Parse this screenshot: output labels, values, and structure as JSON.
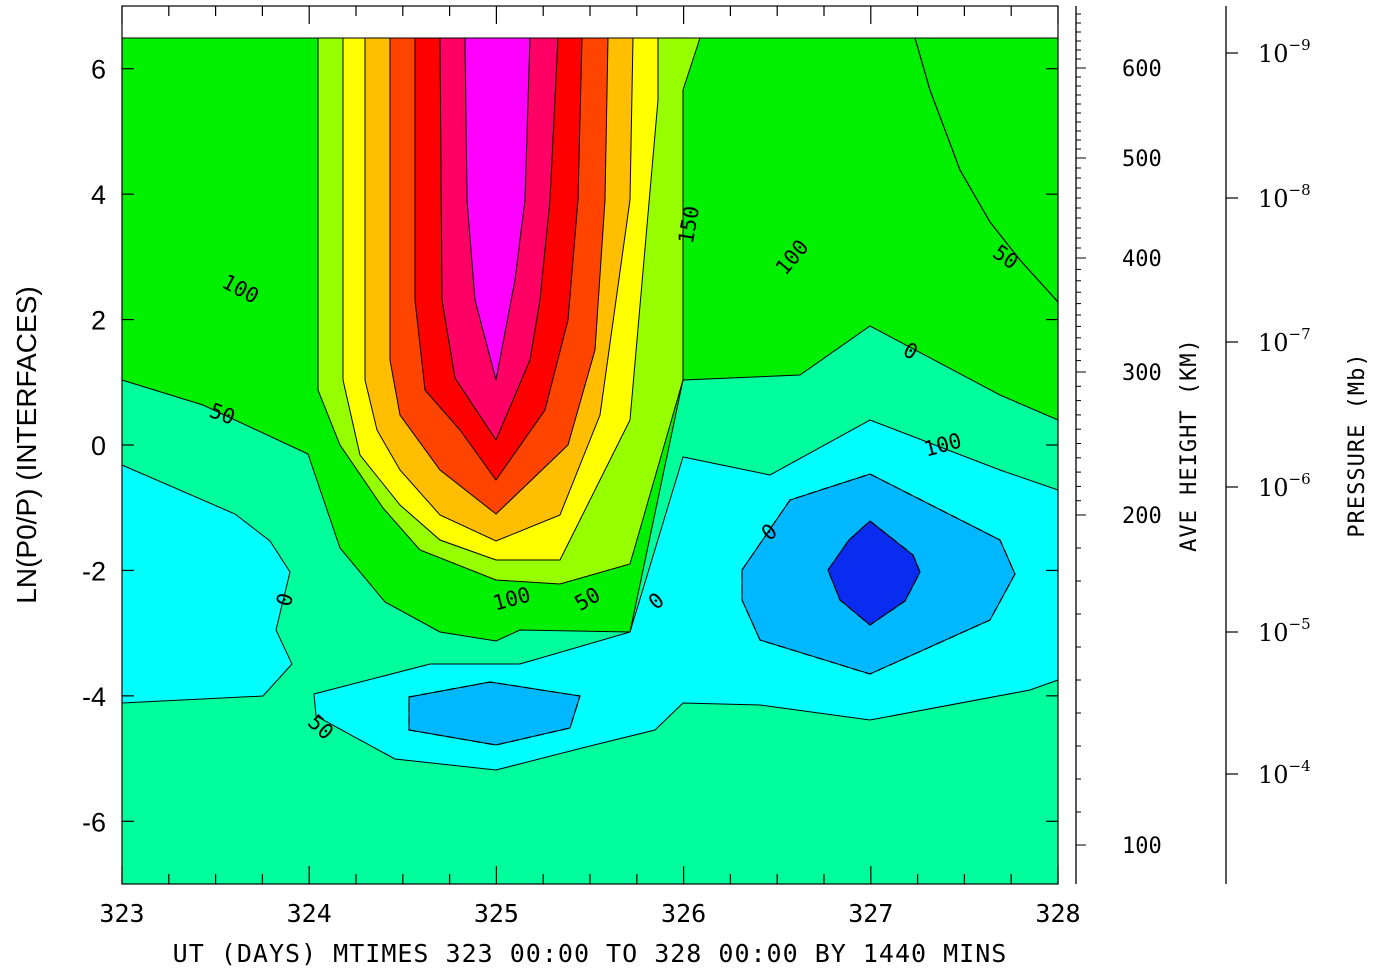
{
  "chart_data": {
    "type": "contour",
    "xlabel": "UT (DAYS) MTIMES 323 00:00 TO 328 00:00 BY 1440 MINS",
    "ylabel": "LN(P0/P) (INTERFACES)",
    "xlim": [
      323,
      328
    ],
    "ylim": [
      -7,
      7
    ],
    "x_ticks": [
      "323",
      "324",
      "325",
      "326",
      "327",
      "328"
    ],
    "y_ticks": [
      "-6",
      "-4",
      "-2",
      "0",
      "2",
      "4",
      "6"
    ],
    "right_axis_1": {
      "label": "AVE HEIGHT (KM)",
      "ticks": [
        "100",
        "200",
        "300",
        "400",
        "500",
        "600"
      ]
    },
    "right_axis_2": {
      "label": "PRESSURE (Mb)",
      "ticks": [
        {
          "base": "10",
          "exp": "−4"
        },
        {
          "base": "10",
          "exp": "−5"
        },
        {
          "base": "10",
          "exp": "−6"
        },
        {
          "base": "10",
          "exp": "−7"
        },
        {
          "base": "10",
          "exp": "−8"
        },
        {
          "base": "10",
          "exp": "−9"
        }
      ]
    },
    "contour_labels": [
      "100",
      "50",
      "0",
      "100",
      "50",
      "0",
      "150",
      "100",
      "50",
      "0",
      "100",
      "50",
      "0",
      "50",
      "0"
    ],
    "fill_colors": {
      "level_neg100": "#0a2cf0",
      "level_neg50": "#00b8ff",
      "level_0": "#00ffff",
      "level_50": "#00ff9c",
      "level_100": "#00f000",
      "level_150": "#96ff00",
      "level_200": "#ffff00",
      "level_250": "#ffbe00",
      "level_300": "#ff4400",
      "level_350": "#ff0000",
      "level_400": "#ff0064",
      "level_450": "#ff00ff"
    }
  }
}
